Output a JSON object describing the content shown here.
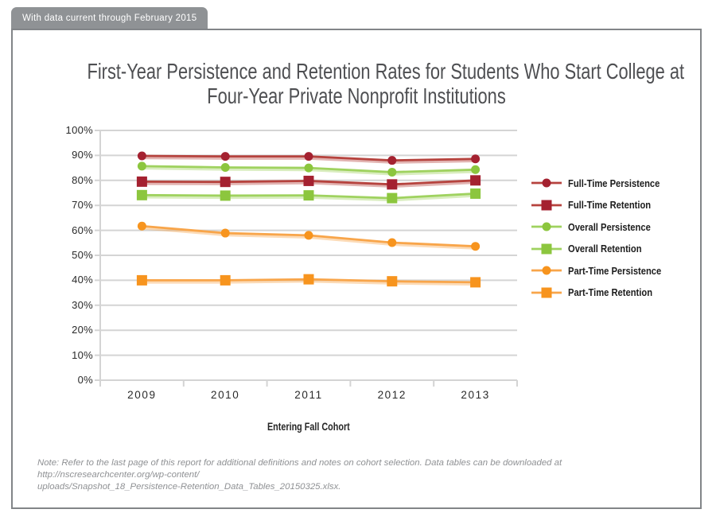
{
  "banner": {
    "label": "With data current through February 2015"
  },
  "header": {
    "title_line1": "First-Year Persistence and Retention Rates for Students Who Start College at",
    "title_line2": "Four-Year Private Nonprofit Institutions"
  },
  "chart_data": {
    "type": "line",
    "title": "First-Year Persistence and Retention Rates for Students Who Start College at Four-Year Private Nonprofit Institutions",
    "categories": [
      "2009",
      "2010",
      "2011",
      "2012",
      "2013"
    ],
    "xlabel": "Entering Fall Cohort",
    "ylabel": "",
    "ylim": [
      0,
      100
    ],
    "ytick_step": 10,
    "ytick_labels": [
      "0%",
      "10%",
      "20%",
      "30%",
      "40%",
      "50%",
      "60%",
      "70%",
      "80%",
      "90%",
      "100%"
    ],
    "grid": true,
    "legend_position": "right",
    "series": [
      {
        "name": "Full-Time Persistence",
        "marker": "circle",
        "color": "#a42130",
        "line_color": "#b6433e",
        "values": [
          89.8,
          89.6,
          89.6,
          88.0,
          88.6
        ]
      },
      {
        "name": "Full-Time Retention",
        "marker": "square",
        "color": "#a42130",
        "line_color": "#b6433e",
        "values": [
          79.5,
          79.4,
          79.8,
          78.4,
          80.0
        ]
      },
      {
        "name": "Overall Persistence",
        "marker": "circle",
        "color": "#8cc63e",
        "line_color": "#9fd25f",
        "values": [
          85.7,
          85.2,
          85.0,
          83.3,
          84.3
        ]
      },
      {
        "name": "Overall Retention",
        "marker": "square",
        "color": "#8cc63e",
        "line_color": "#9fd25f",
        "values": [
          74.1,
          73.9,
          74.0,
          72.9,
          74.7
        ]
      },
      {
        "name": "Part-Time Persistence",
        "marker": "circle",
        "color": "#f7941e",
        "line_color": "#f8a54a",
        "values": [
          61.7,
          58.9,
          58.0,
          55.1,
          53.6
        ]
      },
      {
        "name": "Part-Time Retention",
        "marker": "square",
        "color": "#f7941e",
        "line_color": "#f8a54a",
        "values": [
          40.0,
          40.0,
          40.4,
          39.6,
          39.2
        ]
      }
    ]
  },
  "note": {
    "lines": [
      "Note: Refer to the last page of this report for additional definitions and notes on cohort selection. Data tables can be downloaded at http://nscresearchcenter.org/wp-content/",
      "uploads/Snapshot_18_Persistence-Retention_Data_Tables_20150325.xlsx."
    ]
  },
  "colors": {
    "full_time": "#a42130",
    "overall": "#8cc63e",
    "part_time": "#f7941e",
    "gridline": "#d4d4d4",
    "tab_background": "#8f9295",
    "frame_border": "#828588"
  }
}
